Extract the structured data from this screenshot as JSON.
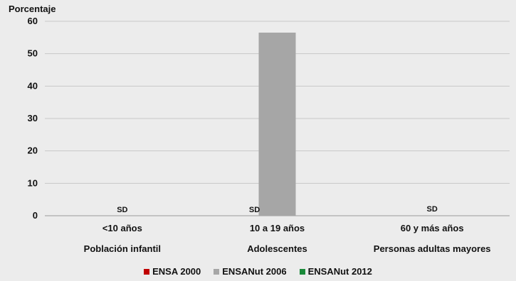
{
  "chart_data": {
    "type": "bar",
    "ylabel": "Porcentaje",
    "ylim": [
      0,
      60
    ],
    "yticks": [
      0,
      10,
      20,
      30,
      40,
      50,
      60
    ],
    "groups": [
      {
        "category": "<10 años",
        "group_label": "Población infantil"
      },
      {
        "category": "10 a 19 años",
        "group_label": "Adolescentes"
      },
      {
        "category": "60 y más años",
        "group_label": "Personas adultas mayores"
      }
    ],
    "series": [
      {
        "name": "ENSA 2000",
        "color": "#c00000",
        "values": [
          null,
          null,
          null
        ]
      },
      {
        "name": "ENSANut 2006",
        "color": "#a6a6a6",
        "values": [
          null,
          56.5,
          null
        ]
      },
      {
        "name": "ENSANut 2012",
        "color": "#1a8a3a",
        "values": [
          null,
          null,
          null
        ]
      }
    ],
    "annotations": [
      {
        "group": 0,
        "text": "SD"
      },
      {
        "group": 1,
        "text": "SD"
      },
      {
        "group": 2,
        "text": "SD"
      }
    ],
    "grid": true,
    "legend_position": "bottom"
  }
}
